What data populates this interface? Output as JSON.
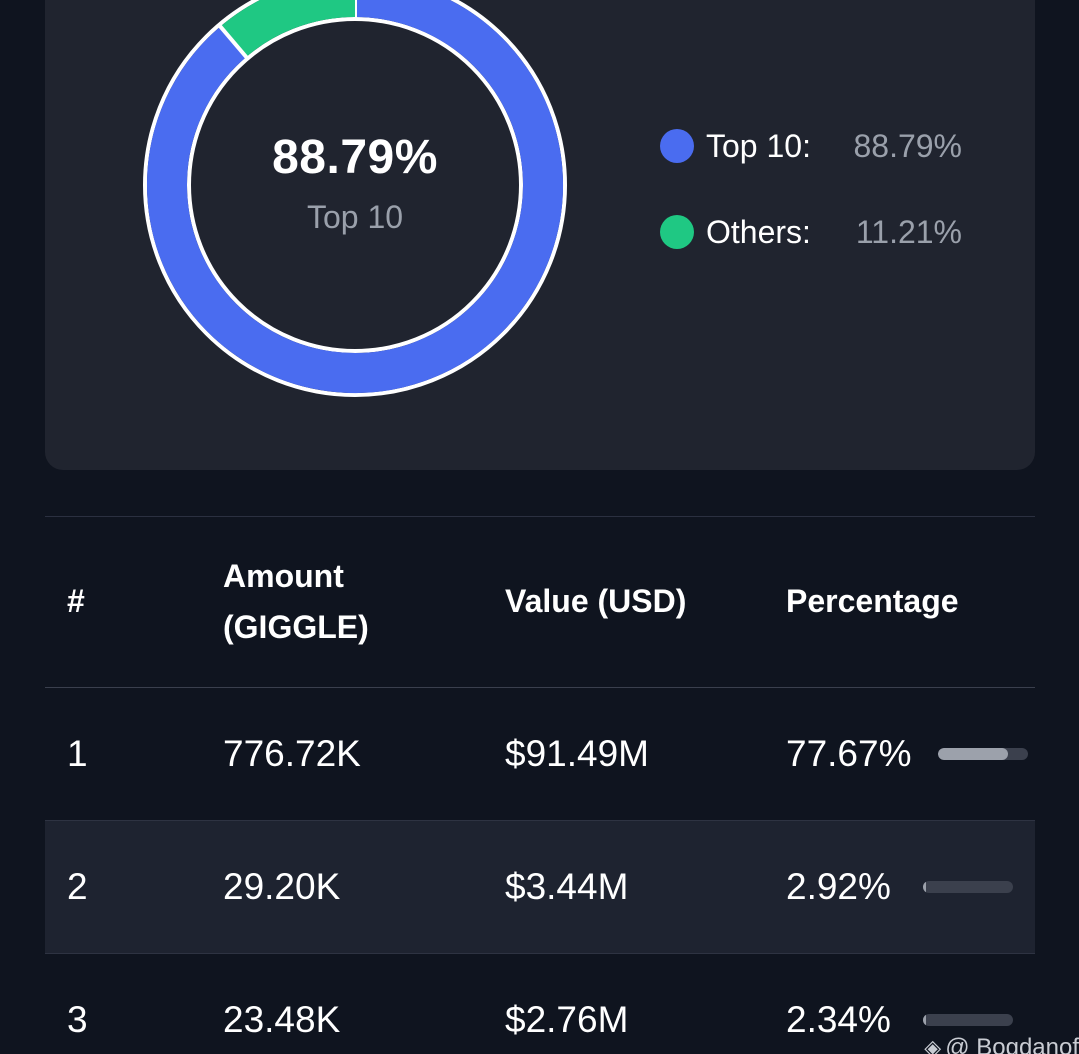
{
  "donut": {
    "center_value": "88.79%",
    "center_label": "Top 10",
    "segments": [
      {
        "name": "Top 10",
        "value": 88.79,
        "color": "#4a6cf0"
      },
      {
        "name": "Others",
        "value": 11.21,
        "color": "#1fc883"
      }
    ]
  },
  "legend": {
    "items": [
      {
        "label": "Top 10:",
        "value": "88.79%",
        "color": "#4a6cf0"
      },
      {
        "label": "Others:",
        "value": "11.21%",
        "color": "#1fc883"
      }
    ]
  },
  "table": {
    "headers": {
      "rank": "#",
      "amount": "Amount (GIGGLE)",
      "value": "Value (USD)",
      "percentage": "Percentage"
    },
    "rows": [
      {
        "rank": "1",
        "amount": "776.72K",
        "value": "$91.49M",
        "percentage": "77.67%",
        "fraction": 0.7767
      },
      {
        "rank": "2",
        "amount": "29.20K",
        "value": "$3.44M",
        "percentage": "2.92%",
        "fraction": 0.0292
      },
      {
        "rank": "3",
        "amount": "23.48K",
        "value": "$2.76M",
        "percentage": "2.34%",
        "fraction": 0.0234
      }
    ]
  },
  "watermark": {
    "text": "@ Bogdanof"
  }
}
